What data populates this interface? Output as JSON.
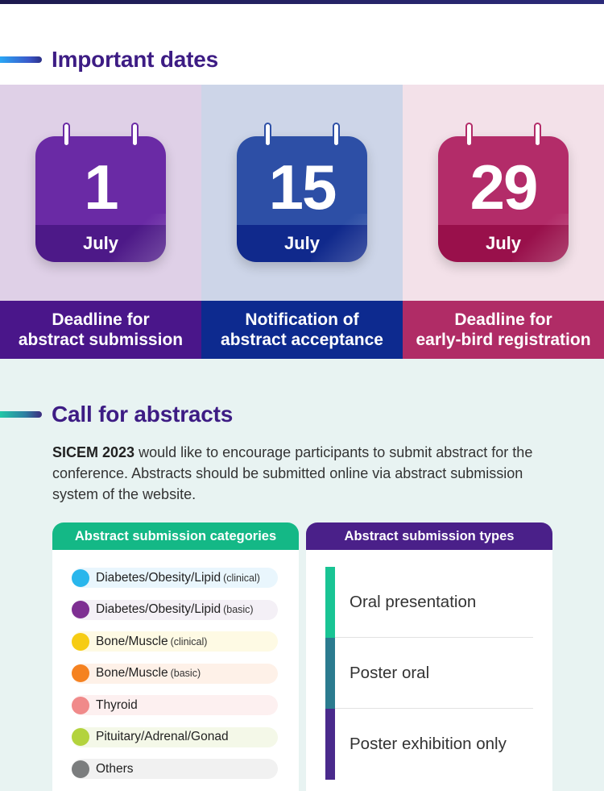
{
  "important_dates": {
    "title": "Important dates",
    "items": [
      {
        "day": "1",
        "month": "July",
        "caption_line1": "Deadline for",
        "caption_line2": "abstract submission",
        "bg": "#dfd0e7",
        "cal_top": "#6a2aa5",
        "cal_bottom": "#4d1988",
        "caption_bg": "#4a168a",
        "ring_border": "#6a2aa5"
      },
      {
        "day": "15",
        "month": "July",
        "caption_line1": "Notification of",
        "caption_line2": "abstract acceptance",
        "bg": "#cdd5e8",
        "cal_top": "#2d4fa6",
        "cal_bottom": "#10298c",
        "caption_bg": "#0d2a8f",
        "ring_border": "#2d4fa6"
      },
      {
        "day": "29",
        "month": "July",
        "caption_line1": "Deadline for",
        "caption_line2": "early-bird registration",
        "bg": "#f3e1e9",
        "cal_top": "#b32c69",
        "cal_bottom": "#99104b",
        "caption_bg": "#b02c66",
        "ring_border": "#b32c69"
      }
    ]
  },
  "call_for_abstracts": {
    "title": "Call for abstracts",
    "intro_bold": "SICEM 2023",
    "intro_text": " would like to encourage participants to submit abstract for the conference. Abstracts should be submitted online via abstract submission system of the website.",
    "categories_title": "Abstract submission categories",
    "categories": [
      {
        "label": "Diabetes/Obesity/Lipid",
        "sub": "(clinical)",
        "dot": "#29b6ec",
        "pill": "#e9f6fd"
      },
      {
        "label": "Diabetes/Obesity/Lipid",
        "sub": "(basic)",
        "dot": "#7e2f92",
        "pill": "#f4f0f6"
      },
      {
        "label": "Bone/Muscle",
        "sub": "(clinical)",
        "dot": "#f6cc14",
        "pill": "#fefae4"
      },
      {
        "label": "Bone/Muscle",
        "sub": "(basic)",
        "dot": "#f58220",
        "pill": "#fef1e8"
      },
      {
        "label": "Thyroid",
        "sub": "",
        "dot": "#f08a8a",
        "pill": "#fdf0f0"
      },
      {
        "label": "Pituitary/Adrenal/Gonad",
        "sub": "",
        "dot": "#b3d33d",
        "pill": "#f4f8e8"
      },
      {
        "label": "Others",
        "sub": "",
        "dot": "#7b7d7e",
        "pill": "#f1f1f1"
      }
    ],
    "types_title": "Abstract submission types",
    "types": [
      {
        "label": "Oral presentation",
        "color": "#19c494"
      },
      {
        "label": "Poster oral",
        "color": "#2b7b8f"
      },
      {
        "label": "Poster exhibition only",
        "color": "#4a2a8c"
      }
    ]
  }
}
